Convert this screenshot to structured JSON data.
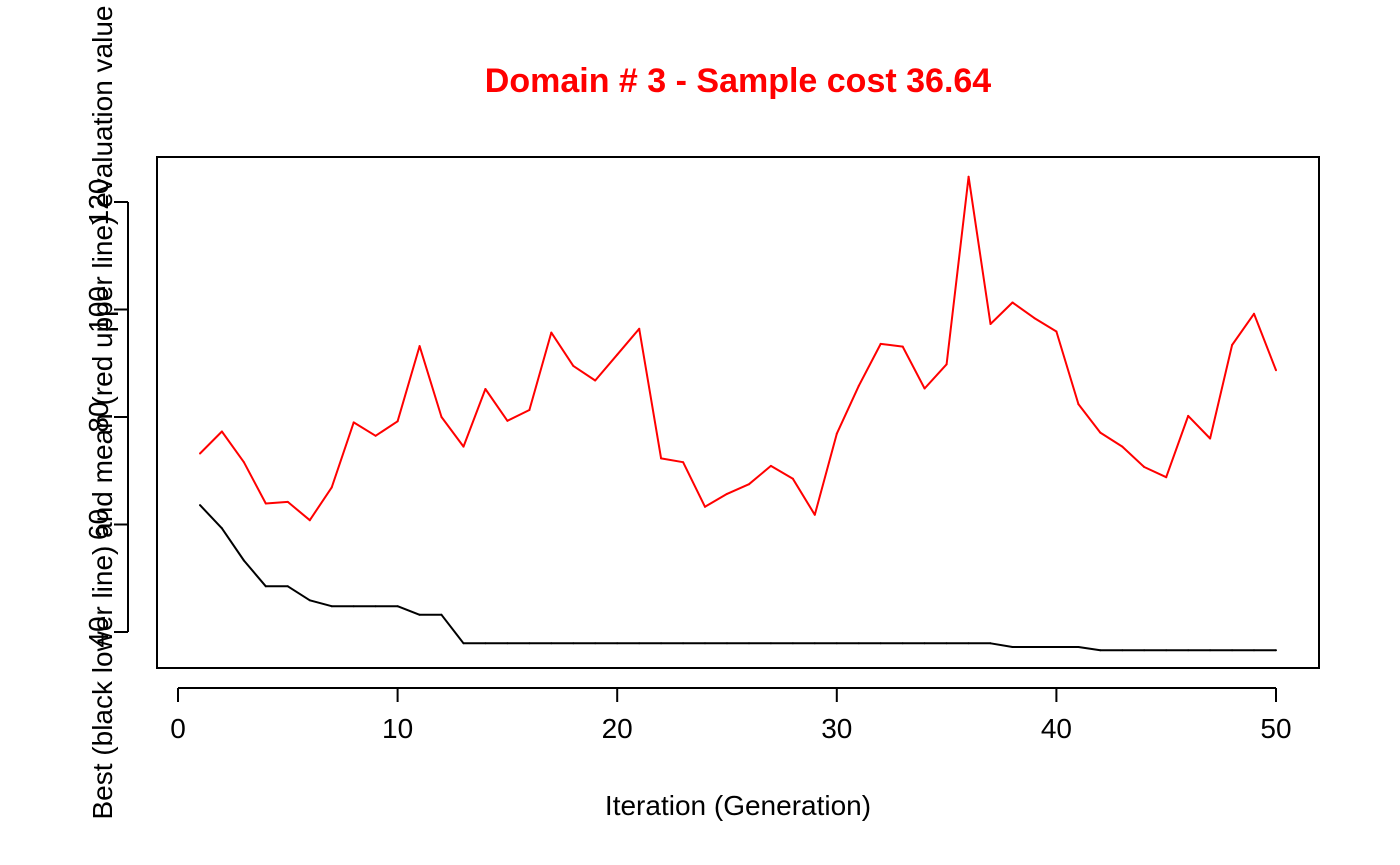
{
  "chart_data": {
    "type": "line",
    "title": "Domain # 3  - Sample cost 36.64",
    "title_color": "#ff0000",
    "xlabel": "Iteration (Generation)",
    "ylabel": "Best (black lower line) and mean (red upper line) evaluation value",
    "xlim": [
      0,
      50
    ],
    "ylim": [
      33,
      128
    ],
    "x_ticks": [
      0,
      10,
      20,
      30,
      40,
      50
    ],
    "y_ticks": [
      40,
      60,
      80,
      100,
      120
    ],
    "grid": false,
    "x": [
      1,
      2,
      3,
      4,
      5,
      6,
      7,
      8,
      9,
      10,
      11,
      12,
      13,
      14,
      15,
      16,
      17,
      18,
      19,
      20,
      21,
      22,
      23,
      24,
      25,
      26,
      27,
      28,
      29,
      30,
      31,
      32,
      33,
      34,
      35,
      36,
      37,
      38,
      39,
      40,
      41,
      42,
      43,
      44,
      45,
      46,
      47,
      48,
      49,
      50
    ],
    "series": [
      {
        "name": "best",
        "color": "#000000",
        "values": [
          63.6,
          59.3,
          53.3,
          48.5,
          48.5,
          45.9,
          44.8,
          44.8,
          44.8,
          44.8,
          43.2,
          43.2,
          37.9,
          37.9,
          37.9,
          37.9,
          37.9,
          37.9,
          37.9,
          37.9,
          37.9,
          37.9,
          37.9,
          37.9,
          37.9,
          37.9,
          37.9,
          37.9,
          37.9,
          37.9,
          37.9,
          37.9,
          37.9,
          37.9,
          37.9,
          37.9,
          37.9,
          37.2,
          37.2,
          37.2,
          37.2,
          36.6,
          36.6,
          36.6,
          36.6,
          36.6,
          36.6,
          36.6,
          36.6,
          36.6
        ]
      },
      {
        "name": "mean",
        "color": "#ff0000",
        "values": [
          73.2,
          77.3,
          71.6,
          63.9,
          64.2,
          60.8,
          66.9,
          79.0,
          76.5,
          79.2,
          93.2,
          80.0,
          74.5,
          85.2,
          79.3,
          81.3,
          95.7,
          89.5,
          86.8,
          91.6,
          96.4,
          72.3,
          71.6,
          63.3,
          65.7,
          67.5,
          70.9,
          68.5,
          61.8,
          76.9,
          85.8,
          93.6,
          93.1,
          85.3,
          89.8,
          124.7,
          97.3,
          101.3,
          98.4,
          95.9,
          82.4,
          77.1,
          74.5,
          70.7,
          68.8,
          80.2,
          76.0,
          93.4,
          99.2,
          88.7
        ]
      }
    ]
  }
}
